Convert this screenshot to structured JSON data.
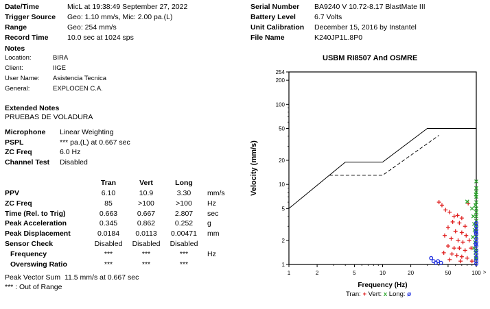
{
  "header_left": [
    {
      "label": "Date/Time",
      "value": "MicL at 19:38:49 September 27, 2022"
    },
    {
      "label": "Trigger Source",
      "value": "Geo: 1.10 mm/s, Mic: 2.00 pa.(L)"
    },
    {
      "label": "Range",
      "value": "Geo: 254 mm/s"
    },
    {
      "label": "Record Time",
      "value": "10.0 sec at 1024 sps"
    }
  ],
  "header_right": [
    {
      "label": "Serial Number",
      "value": "BA9240 V 10.72-8.17 BlastMate III"
    },
    {
      "label": "Battery Level",
      "value": "6.7 Volts"
    },
    {
      "label": "Unit Calibration",
      "value": "December 15, 2016 by Instantel"
    },
    {
      "label": "File Name",
      "value": "K240JP1L.8P0"
    }
  ],
  "notes": {
    "heading": "Notes",
    "rows": [
      {
        "label": "Location:",
        "value": "BIRA"
      },
      {
        "label": "Client:",
        "value": "IIGE"
      },
      {
        "label": "User Name:",
        "value": "Asistencia Tecnica"
      },
      {
        "label": "General:",
        "value": "EXPLOCEN C.A."
      }
    ]
  },
  "extended_notes": {
    "heading": "Extended Notes",
    "text": "PRUEBAS DE VOLADURA"
  },
  "microphone": [
    {
      "label": "Microphone",
      "value": "Linear Weighting"
    },
    {
      "label": "PSPL",
      "value": "*** pa.(L) at 0.667 sec"
    },
    {
      "label": "ZC Freq",
      "value": "6.0 Hz"
    },
    {
      "label": "Channel Test",
      "value": "Disabled"
    }
  ],
  "table": {
    "columns": [
      "Tran",
      "Vert",
      "Long"
    ],
    "rows": [
      {
        "label": "PPV",
        "values": [
          "6.10",
          "10.9",
          "3.30"
        ],
        "unit": "mm/s"
      },
      {
        "label": "ZC Freq",
        "values": [
          "85",
          ">100",
          ">100"
        ],
        "unit": "Hz"
      },
      {
        "label": "Time (Rel. to Trig)",
        "values": [
          "0.663",
          "0.667",
          "2.807"
        ],
        "unit": "sec"
      },
      {
        "label": "Peak Acceleration",
        "values": [
          "0.345",
          "0.862",
          "0.252"
        ],
        "unit": "g"
      },
      {
        "label": "Peak Displacement",
        "values": [
          "0.0184",
          "0.0113",
          "0.00471"
        ],
        "unit": "mm"
      },
      {
        "label": "Sensor Check",
        "values": [
          "Disabled",
          "Disabled",
          "Disabled"
        ],
        "unit": ""
      },
      {
        "label": "Frequency",
        "values": [
          "***",
          "***",
          "***"
        ],
        "unit": "Hz"
      },
      {
        "label": "Overswing Ratio",
        "values": [
          "***",
          "***",
          "***"
        ],
        "unit": ""
      }
    ]
  },
  "peak_vector_sum": {
    "label": "Peak Vector Sum",
    "value": "11.5 mm/s at 0.667 sec"
  },
  "footnote": "*** : Out of Range",
  "chart_data": {
    "type": "scatter",
    "title": "USBM RI8507 And OSMRE",
    "xlabel": "Frequency (Hz)",
    "ylabel": "Velocity (mm/s)",
    "x_scale": "log",
    "y_scale": "log",
    "xlim": [
      1,
      100
    ],
    "ylim": [
      1,
      254
    ],
    "x_ticks": [
      1,
      2,
      5,
      10,
      20,
      50,
      100
    ],
    "x_tick_labels": [
      "1",
      "2",
      "5",
      "10",
      "20",
      "50",
      "100"
    ],
    "y_ticks": [
      1,
      2,
      5,
      10,
      20,
      50,
      100,
      200,
      254
    ],
    "y_tick_labels": [
      "1",
      "2",
      "5",
      "10",
      "20",
      "50",
      "100",
      "200",
      "254"
    ],
    "axis_arrow": ">",
    "limit_lines": [
      {
        "style": "solid",
        "points": [
          [
            1,
            5
          ],
          [
            4,
            19
          ],
          [
            10,
            19
          ],
          [
            30,
            50
          ],
          [
            100,
            50
          ]
        ]
      },
      {
        "style": "dashed",
        "points": [
          [
            2.7,
            13
          ],
          [
            10,
            13
          ],
          [
            40,
            41
          ]
        ]
      }
    ],
    "series": [
      {
        "name": "Tran",
        "symbol": "+",
        "color": "#e02020",
        "points": [
          [
            40,
            6.0
          ],
          [
            43,
            5.5
          ],
          [
            47,
            4.8
          ],
          [
            52,
            4.5
          ],
          [
            58,
            4.0
          ],
          [
            63,
            4.1
          ],
          [
            70,
            3.8
          ],
          [
            56,
            3.4
          ],
          [
            66,
            3.3
          ],
          [
            76,
            3.0
          ],
          [
            82,
            5.8
          ],
          [
            50,
            2.9
          ],
          [
            60,
            2.6
          ],
          [
            70,
            2.5
          ],
          [
            78,
            2.3
          ],
          [
            46,
            2.3
          ],
          [
            54,
            2.1
          ],
          [
            64,
            2.0
          ],
          [
            72,
            1.9
          ],
          [
            84,
            2.0
          ],
          [
            50,
            1.7
          ],
          [
            58,
            1.6
          ],
          [
            66,
            1.6
          ],
          [
            76,
            1.5
          ],
          [
            88,
            1.6
          ],
          [
            45,
            1.4
          ],
          [
            55,
            1.35
          ],
          [
            62,
            1.3
          ],
          [
            70,
            1.25
          ],
          [
            80,
            1.2
          ],
          [
            52,
            1.15
          ],
          [
            68,
            1.1
          ],
          [
            90,
            1.1
          ]
        ]
      },
      {
        "name": "Vert",
        "symbol": "x",
        "color": "#2ea82e",
        "points": [
          [
            80,
            6.1
          ],
          [
            90,
            5.0
          ],
          [
            93,
            4.0
          ],
          [
            95,
            3.2
          ],
          [
            96,
            2.7
          ],
          [
            92,
            2.2
          ],
          [
            97,
            1.9
          ],
          [
            95,
            1.6
          ],
          [
            98,
            1.4
          ],
          [
            99,
            1.2
          ],
          [
            100,
            10.9
          ],
          [
            100,
            9.0
          ],
          [
            100,
            8.0
          ],
          [
            100,
            7.0
          ],
          [
            100,
            6.0
          ],
          [
            100,
            5.0
          ],
          [
            100,
            4.5
          ],
          [
            100,
            4.0
          ],
          [
            100,
            3.5
          ],
          [
            100,
            3.0
          ],
          [
            100,
            2.6
          ],
          [
            100,
            2.2
          ],
          [
            100,
            1.8
          ],
          [
            100,
            1.5
          ],
          [
            100,
            1.2
          ],
          [
            99,
            7.5
          ],
          [
            98,
            5.5
          ]
        ]
      },
      {
        "name": "Long",
        "symbol": "o",
        "color": "#2030e0",
        "points": [
          [
            33,
            1.2
          ],
          [
            35,
            1.1
          ],
          [
            37,
            1.05
          ],
          [
            39,
            1.1
          ],
          [
            42,
            1.05
          ],
          [
            100,
            3.3
          ],
          [
            100,
            3.0
          ],
          [
            100,
            2.7
          ],
          [
            100,
            2.4
          ],
          [
            100,
            2.1
          ],
          [
            100,
            1.9
          ],
          [
            100,
            1.7
          ],
          [
            100,
            1.5
          ],
          [
            100,
            1.35
          ],
          [
            100,
            1.2
          ],
          [
            100,
            1.1
          ],
          [
            100,
            1.02
          ],
          [
            99,
            2.5
          ],
          [
            99,
            1.8
          ]
        ]
      }
    ],
    "legend_position": "bottom",
    "grid": false
  }
}
